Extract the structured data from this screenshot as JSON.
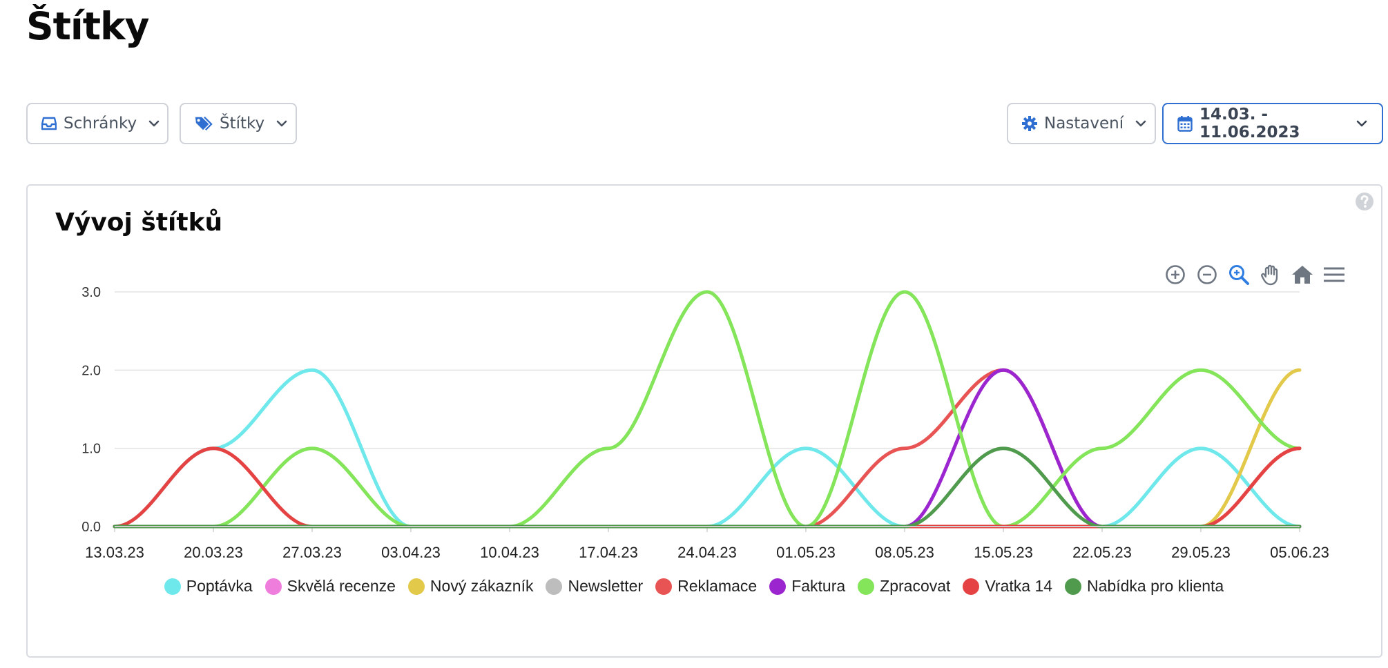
{
  "page": {
    "title": "Štítky"
  },
  "filters": {
    "inboxes_label": "Schránky",
    "tags_label": "Štítky",
    "settings_label": "Nastavení",
    "date_range": "14.03. - 11.06.2023"
  },
  "card": {
    "title": "Vývoj štítků"
  },
  "colors": {
    "accent": "#2f6fd1",
    "border": "#cfd3d9",
    "grid": "#e3e3e3"
  },
  "chart_data": {
    "type": "line",
    "title": "Vývoj štítků",
    "xlabel": "",
    "ylabel": "",
    "ylim": [
      0,
      3
    ],
    "yticks": [
      "0.0",
      "1.0",
      "2.0",
      "3.0"
    ],
    "grid": true,
    "legend_position": "bottom",
    "x": [
      "13.03.23",
      "20.03.23",
      "27.03.23",
      "03.04.23",
      "10.04.23",
      "17.04.23",
      "24.04.23",
      "01.05.23",
      "08.05.23",
      "15.05.23",
      "22.05.23",
      "29.05.23",
      "05.06.23"
    ],
    "series": [
      {
        "name": "Poptávka",
        "color": "#6fe8ec",
        "values": [
          0,
          1,
          2,
          0,
          0,
          0,
          0,
          1,
          0,
          0,
          0,
          1,
          0
        ]
      },
      {
        "name": "Skvělá recenze",
        "color": "#ee7ddc",
        "values": [
          0,
          0,
          0,
          0,
          0,
          0,
          0,
          0,
          0,
          0,
          0,
          0,
          0
        ]
      },
      {
        "name": "Nový zákazník",
        "color": "#e3c94a",
        "values": [
          0,
          0,
          0,
          0,
          0,
          0,
          0,
          0,
          0,
          0,
          0,
          0,
          2
        ]
      },
      {
        "name": "Newsletter",
        "color": "#bdbdbd",
        "values": [
          0,
          0,
          0,
          0,
          0,
          0,
          0,
          0,
          0,
          0,
          0,
          0,
          0
        ]
      },
      {
        "name": "Reklamace",
        "color": "#e85353",
        "values": [
          0,
          0,
          0,
          0,
          0,
          0,
          0,
          0,
          1,
          2,
          0,
          0,
          1
        ]
      },
      {
        "name": "Faktura",
        "color": "#9b25cf",
        "values": [
          0,
          0,
          0,
          0,
          0,
          0,
          0,
          0,
          0,
          2,
          0,
          0,
          0
        ]
      },
      {
        "name": "Zpracovat",
        "color": "#84e55a",
        "values": [
          0,
          0,
          1,
          0,
          0,
          1,
          3,
          0,
          3,
          0,
          1,
          2,
          1
        ]
      },
      {
        "name": "Vratka 14",
        "color": "#e54343",
        "values": [
          0,
          1,
          0,
          0,
          0,
          0,
          0,
          0,
          0,
          0,
          0,
          0,
          1
        ]
      },
      {
        "name": "Nabídka pro klienta",
        "color": "#4f9a4c",
        "values": [
          0,
          0,
          0,
          0,
          0,
          0,
          0,
          0,
          0,
          1,
          0,
          0,
          0
        ]
      }
    ]
  },
  "toolbar": {
    "icons": [
      "zoom-in-icon",
      "zoom-out-icon",
      "selection-zoom-icon",
      "pan-hand-icon",
      "home-icon",
      "menu-icon"
    ]
  }
}
